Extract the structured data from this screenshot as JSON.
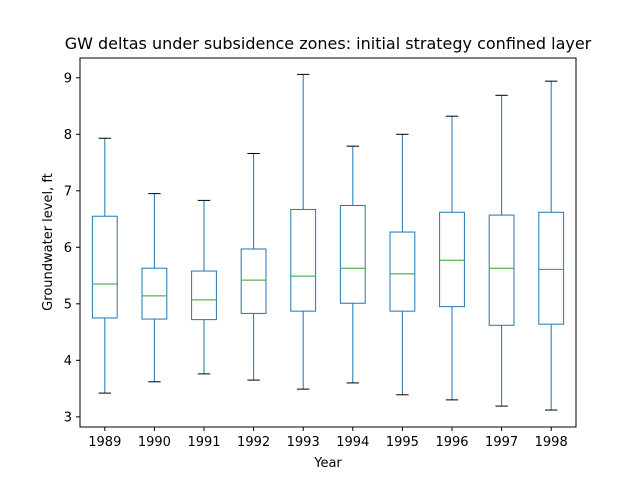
{
  "chart_data": {
    "type": "box",
    "title": "GW deltas under subsidence zones: initial strategy confined layer",
    "xlabel": "Year",
    "ylabel": "Groundwater level, ft",
    "ylim": [
      2.82,
      9.35
    ],
    "yticks": [
      3,
      4,
      5,
      6,
      7,
      8,
      9
    ],
    "grid": false,
    "box_color": "#1f77b4",
    "median_color": "#2ca02c",
    "whisker_color": "#1f77b4",
    "cap_color": "#000000",
    "categories": [
      "1989",
      "1990",
      "1991",
      "1992",
      "1993",
      "1994",
      "1995",
      "1996",
      "1997",
      "1998"
    ],
    "boxes": [
      {
        "year": "1989",
        "min": 3.42,
        "q1": 4.75,
        "median": 5.35,
        "q3": 6.55,
        "max": 7.93
      },
      {
        "year": "1990",
        "min": 3.62,
        "q1": 4.73,
        "median": 5.14,
        "q3": 5.63,
        "max": 6.95
      },
      {
        "year": "1991",
        "min": 3.76,
        "q1": 4.72,
        "median": 5.07,
        "q3": 5.58,
        "max": 6.83
      },
      {
        "year": "1992",
        "min": 3.65,
        "q1": 4.83,
        "median": 5.42,
        "q3": 5.97,
        "max": 7.66
      },
      {
        "year": "1993",
        "min": 3.49,
        "q1": 4.87,
        "median": 5.49,
        "q3": 6.67,
        "max": 9.06
      },
      {
        "year": "1994",
        "min": 3.6,
        "q1": 5.01,
        "median": 5.63,
        "q3": 6.74,
        "max": 7.79
      },
      {
        "year": "1995",
        "min": 3.39,
        "q1": 4.87,
        "median": 5.53,
        "q3": 6.27,
        "max": 8.0
      },
      {
        "year": "1996",
        "min": 3.3,
        "q1": 4.95,
        "median": 5.77,
        "q3": 6.62,
        "max": 8.32
      },
      {
        "year": "1997",
        "min": 3.19,
        "q1": 4.62,
        "median": 5.63,
        "q3": 6.57,
        "max": 8.69
      },
      {
        "year": "1998",
        "min": 3.12,
        "q1": 4.64,
        "median": 5.61,
        "q3": 6.62,
        "max": 8.94
      }
    ]
  }
}
